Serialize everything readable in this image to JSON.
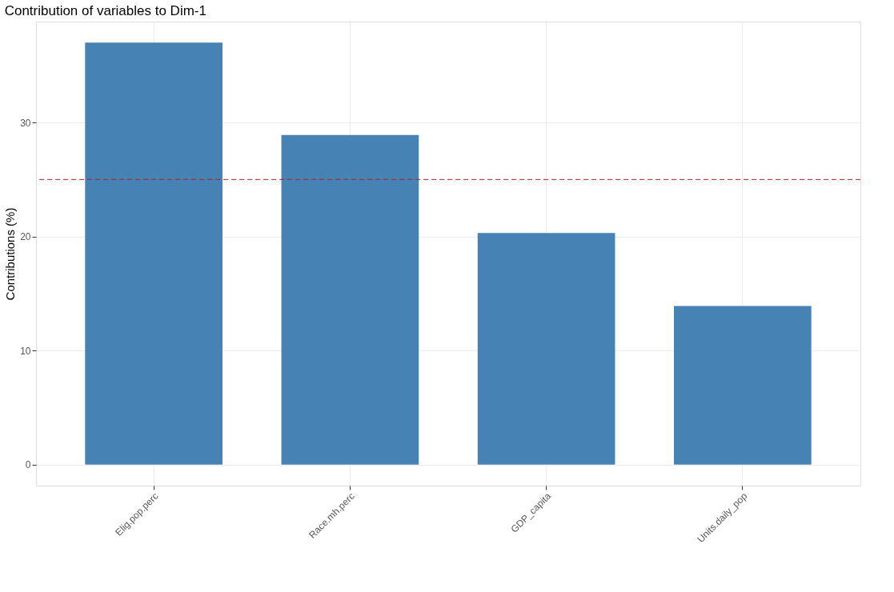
{
  "chart_data": {
    "type": "bar",
    "title": "Contribution of variables to Dim-1",
    "ylabel": "Contributions (%)",
    "categories": [
      "Elig.pop.perc",
      "Race.mh.perc",
      "GDP_capita",
      "Units.daily_pop"
    ],
    "values": [
      37.0,
      28.9,
      20.3,
      13.9
    ],
    "color": "#4682b4",
    "ylim": [
      -1.85,
      38.85
    ],
    "yticks": [
      0,
      10,
      20,
      30
    ],
    "grid": true,
    "ref_lines": [
      {
        "axis": "y",
        "value": 25,
        "color": "#b22222",
        "line_style": "dashed"
      }
    ]
  }
}
